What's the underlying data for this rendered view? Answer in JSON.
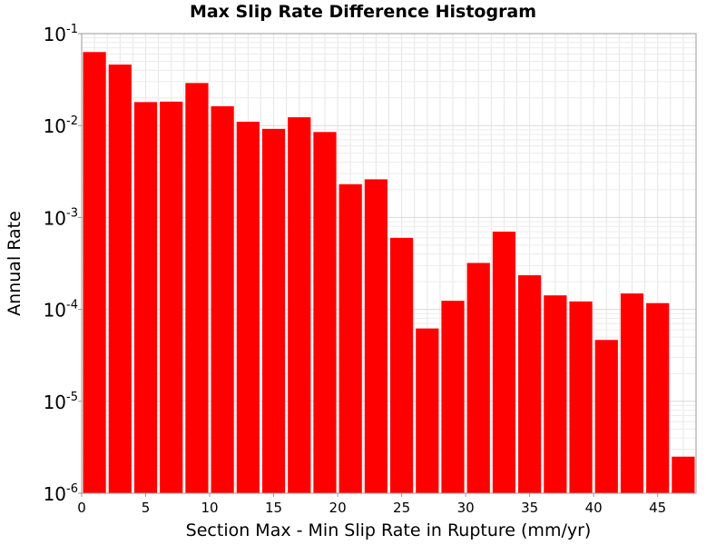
{
  "chart_data": {
    "type": "bar",
    "title": "Max Slip Rate Difference Histogram",
    "xlabel": "Section Max - Min Slip Rate in Rupture (mm/yr)",
    "ylabel": "Annual Rate",
    "y_scale": "log",
    "xlim": [
      0,
      48
    ],
    "ylim": [
      1e-06,
      0.1
    ],
    "bin_width": 2,
    "x_ticks": [
      0,
      5,
      10,
      15,
      20,
      25,
      30,
      35,
      40,
      45
    ],
    "y_ticks": [
      {
        "base": "10",
        "exp": "-1",
        "value": 0.1
      },
      {
        "base": "10",
        "exp": "-2",
        "value": 0.01
      },
      {
        "base": "10",
        "exp": "-3",
        "value": 0.001
      },
      {
        "base": "10",
        "exp": "-4",
        "value": 0.0001
      },
      {
        "base": "10",
        "exp": "-5",
        "value": 1e-05
      },
      {
        "base": "10",
        "exp": "-6",
        "value": 1e-06
      }
    ],
    "grid": true,
    "bar_color": "#ff0000",
    "bins": [
      {
        "x": 1,
        "value": 0.063
      },
      {
        "x": 3,
        "value": 0.046
      },
      {
        "x": 5,
        "value": 0.018
      },
      {
        "x": 7,
        "value": 0.0182
      },
      {
        "x": 9,
        "value": 0.029
      },
      {
        "x": 11,
        "value": 0.0162
      },
      {
        "x": 13,
        "value": 0.011
      },
      {
        "x": 15,
        "value": 0.0092
      },
      {
        "x": 17,
        "value": 0.0123
      },
      {
        "x": 19,
        "value": 0.0085
      },
      {
        "x": 21,
        "value": 0.0023
      },
      {
        "x": 23,
        "value": 0.0026
      },
      {
        "x": 25,
        "value": 0.0006
      },
      {
        "x": 27,
        "value": 6.2e-05
      },
      {
        "x": 29,
        "value": 0.000124
      },
      {
        "x": 31,
        "value": 0.00032
      },
      {
        "x": 33,
        "value": 0.0007
      },
      {
        "x": 35,
        "value": 0.000235
      },
      {
        "x": 37,
        "value": 0.000142
      },
      {
        "x": 39,
        "value": 0.000122
      },
      {
        "x": 41,
        "value": 4.65e-05
      },
      {
        "x": 43,
        "value": 0.000149
      },
      {
        "x": 45,
        "value": 0.000117
      },
      {
        "x": 47,
        "value": 2.5e-06
      }
    ]
  }
}
